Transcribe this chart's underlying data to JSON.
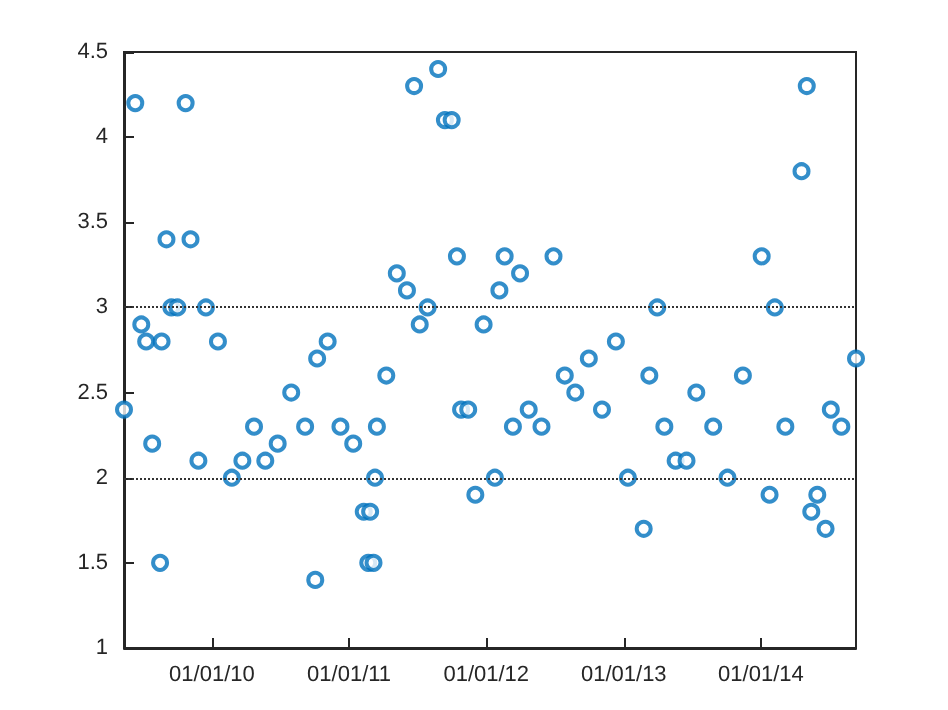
{
  "chart_data": {
    "type": "scatter",
    "marker": "circle",
    "grid": false,
    "x": [
      "2009-05-12",
      "2009-06-11",
      "2009-06-27",
      "2009-07-10",
      "2009-07-26",
      "2009-08-16",
      "2009-08-20",
      "2009-09-02",
      "2009-09-15",
      "2009-10-01",
      "2009-10-23",
      "2009-11-05",
      "2009-11-26",
      "2009-12-16",
      "2010-01-17",
      "2010-02-23",
      "2010-03-23",
      "2010-04-23",
      "2010-05-23",
      "2010-06-25",
      "2010-07-31",
      "2010-09-06",
      "2010-10-03",
      "2010-10-08",
      "2010-11-05",
      "2010-12-09",
      "2011-01-12",
      "2011-02-09",
      "2011-02-21",
      "2011-02-26",
      "2011-03-07",
      "2011-03-11",
      "2011-03-16",
      "2011-04-10",
      "2011-05-08",
      "2011-06-04",
      "2011-06-23",
      "2011-07-08",
      "2011-07-29",
      "2011-08-26",
      "2011-09-13",
      "2011-10-01",
      "2011-10-15",
      "2011-10-26",
      "2011-11-14",
      "2011-12-03",
      "2011-12-25",
      "2012-01-24",
      "2012-02-05",
      "2012-02-19",
      "2012-03-12",
      "2012-03-31",
      "2012-04-23",
      "2012-05-27",
      "2012-06-28",
      "2012-07-28",
      "2012-08-25",
      "2012-09-30",
      "2012-11-04",
      "2012-12-11",
      "2013-01-12",
      "2013-02-23",
      "2013-03-10",
      "2013-03-31",
      "2013-04-19",
      "2013-05-19",
      "2013-06-17",
      "2013-07-13",
      "2013-08-27",
      "2013-10-04",
      "2013-11-14",
      "2014-01-03",
      "2014-01-24",
      "2014-02-07",
      "2014-03-07",
      "2014-04-19",
      "2014-05-03",
      "2014-05-15",
      "2014-05-31",
      "2014-06-22",
      "2014-07-06",
      "2014-08-03",
      "2014-09-11"
    ],
    "series": [
      {
        "color": "#0072bd",
        "values": [
          2.4,
          4.2,
          2.9,
          2.8,
          2.2,
          1.5,
          2.8,
          3.4,
          3.0,
          3.0,
          4.2,
          3.4,
          2.1,
          3.0,
          2.8,
          2.0,
          2.1,
          2.3,
          2.1,
          2.2,
          2.5,
          2.3,
          1.4,
          2.7,
          2.8,
          2.3,
          2.2,
          1.8,
          1.5,
          1.8,
          1.5,
          2.0,
          2.3,
          2.6,
          3.2,
          3.1,
          4.3,
          2.9,
          3.0,
          4.4,
          4.1,
          4.1,
          3.3,
          2.4,
          2.4,
          1.9,
          2.9,
          2.0,
          3.1,
          3.3,
          2.3,
          3.2,
          2.4,
          2.3,
          3.3,
          2.6,
          2.5,
          2.7,
          2.4,
          2.8,
          2.0,
          1.7,
          2.6,
          3.0,
          2.3,
          2.1,
          2.1,
          2.5,
          2.3,
          2.0,
          2.6,
          3.3,
          1.9,
          3.0,
          2.3,
          3.8,
          4.3,
          1.8,
          1.9,
          1.7,
          2.4,
          2.3,
          2.7
        ]
      }
    ],
    "xlim": [
      "2009-05-12",
      "2014-09-11"
    ],
    "xticks": [
      {
        "value": "2010-01-01",
        "label": "01/01/10"
      },
      {
        "value": "2011-01-01",
        "label": "01/01/11"
      },
      {
        "value": "2012-01-01",
        "label": "01/01/12"
      },
      {
        "value": "2013-01-01",
        "label": "01/01/13"
      },
      {
        "value": "2014-01-01",
        "label": "01/01/14"
      }
    ],
    "ylim": [
      1,
      4.5
    ],
    "yticks": [
      1,
      1.5,
      2,
      2.5,
      3,
      3.5,
      4,
      4.5
    ],
    "ref_lines": [
      {
        "axis": "y",
        "value": 2,
        "color": "#333333",
        "line_style": "dotted"
      },
      {
        "axis": "y",
        "value": 3,
        "color": "#333333",
        "line_style": "dotted"
      }
    ]
  }
}
